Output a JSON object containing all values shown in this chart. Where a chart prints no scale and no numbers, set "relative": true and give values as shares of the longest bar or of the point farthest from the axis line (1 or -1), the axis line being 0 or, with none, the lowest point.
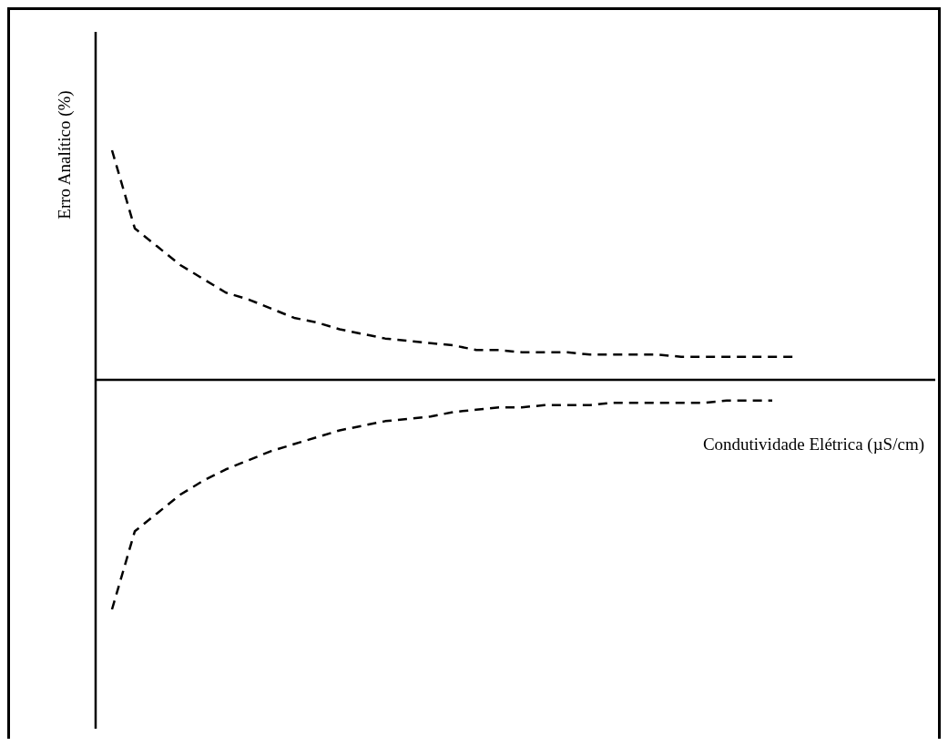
{
  "chart_data": {
    "type": "line",
    "relative": true,
    "xlabel": "Condutividade Elétrica (µS/cm)",
    "ylabel": "Erro Analítico (%)",
    "line_style": "dashed",
    "marker": "none",
    "categories": [
      null,
      null,
      null,
      null,
      null,
      null,
      null,
      null,
      null,
      null,
      null,
      null,
      null,
      null,
      null,
      null,
      null,
      null,
      null,
      null,
      null,
      null,
      null,
      null,
      null,
      null,
      null,
      null,
      null,
      null,
      null
    ],
    "series": [
      {
        "color": "#000000",
        "values": [
          1,
          0.66,
          0.58,
          0.5,
          0.44,
          0.38,
          0.35,
          0.31,
          0.27,
          0.25,
          0.22,
          0.2,
          0.18,
          0.17,
          0.16,
          0.15,
          0.13,
          0.13,
          0.12,
          0.12,
          0.12,
          0.11,
          0.11,
          0.11,
          0.11,
          0.1,
          0.1,
          0.1,
          0.1,
          0.1,
          0.1
        ]
      },
      {
        "color": "#000000",
        "values": [
          -1,
          -0.66,
          -0.58,
          -0.5,
          -0.44,
          -0.39,
          -0.35,
          -0.31,
          -0.28,
          -0.25,
          -0.22,
          -0.2,
          -0.18,
          -0.17,
          -0.16,
          -0.14,
          -0.13,
          -0.12,
          -0.12,
          -0.11,
          -0.11,
          -0.11,
          -0.1,
          -0.1,
          -0.1,
          -0.1,
          -0.1,
          -0.09,
          -0.09,
          -0.09,
          null
        ]
      }
    ]
  }
}
